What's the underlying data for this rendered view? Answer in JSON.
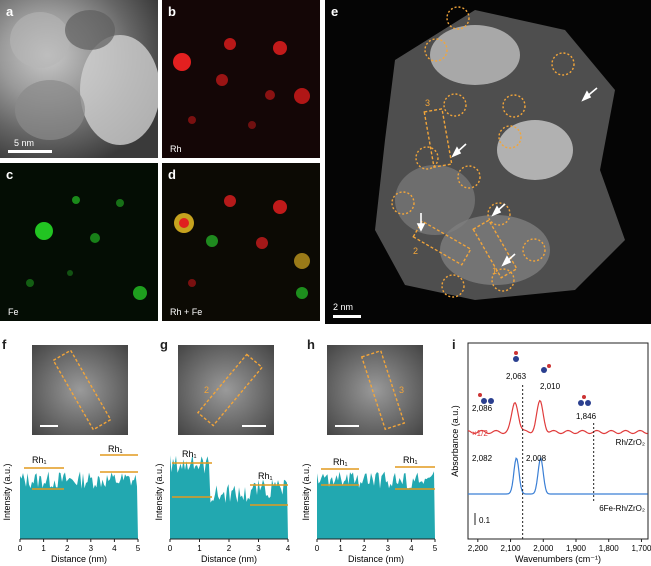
{
  "panels": {
    "a": {
      "label": "a",
      "scale_bar": "5 nm"
    },
    "b": {
      "label": "b",
      "caption": "Rh"
    },
    "c": {
      "label": "c",
      "caption": "Fe"
    },
    "d": {
      "label": "d",
      "caption": "Rh + Fe"
    },
    "e": {
      "label": "e",
      "scale_bar": "2 nm",
      "line_labels": [
        "1",
        "2",
        "3"
      ]
    },
    "f": {
      "label": "f",
      "region": "1"
    },
    "g": {
      "label": "g",
      "region": "2"
    },
    "h": {
      "label": "h",
      "region": "3"
    },
    "i": {
      "label": "i"
    }
  },
  "profile_axes": {
    "ylabel": "Intensity (a.u.)",
    "xlabel": "Distance (nm)",
    "f_ticks": [
      "0",
      "1",
      "2",
      "3",
      "4",
      "5"
    ],
    "g_ticks": [
      "0",
      "1",
      "2",
      "3",
      "4"
    ],
    "h_ticks": [
      "0",
      "1",
      "2",
      "3",
      "4",
      "5"
    ]
  },
  "profile_labels": {
    "f": [
      "Rh₁",
      "Rh₁"
    ],
    "g": [
      "Rh₁",
      "Rh₁"
    ],
    "h": [
      "Rh₁",
      "Rh₁"
    ]
  },
  "chart_data": {
    "type": "line",
    "xlabel": "Wavenumbers (cm⁻¹)",
    "ylabel": "Absorbance (a.u.)",
    "x_ticks": [
      "2,200",
      "2,100",
      "2,000",
      "1,900",
      "1,800",
      "1,700"
    ],
    "xlim": [
      2230,
      1680
    ],
    "scale_label": "0.1",
    "series": [
      {
        "name": "Rh/ZrO₂",
        "color": "#e03c3c",
        "multiplier": "×1/2",
        "peaks": [
          2086,
          2010
        ]
      },
      {
        "name": "6Fe-Rh/ZrO₂",
        "color": "#3a7fd5",
        "peaks": [
          2082,
          2008
        ]
      }
    ],
    "annotations": [
      "2,086",
      "2,063",
      "2,010",
      "1,846",
      "2,082",
      "2,008"
    ]
  }
}
